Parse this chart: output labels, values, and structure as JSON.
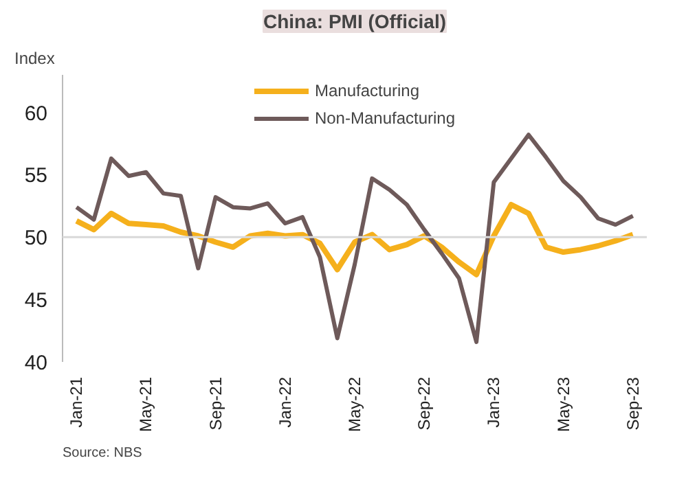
{
  "chart_data": {
    "type": "line",
    "title": "China: PMI (Official)",
    "ylabel": "Index",
    "categories": [
      "Jan-21",
      null,
      null,
      null,
      "May-21",
      null,
      null,
      null,
      "Sep-21",
      null,
      null,
      null,
      "Jan-22",
      null,
      null,
      null,
      "May-22",
      null,
      null,
      null,
      "Sep-22",
      null,
      null,
      null,
      "Jan-23",
      null,
      null,
      null,
      "May-23",
      null,
      null,
      null,
      "Sep-23"
    ],
    "series": [
      {
        "name": "Manufacturing",
        "color": "#f5b01c",
        "values": [
          51.3,
          50.6,
          51.9,
          51.1,
          51.0,
          50.9,
          50.4,
          50.1,
          49.6,
          49.2,
          50.1,
          50.3,
          50.1,
          50.2,
          49.5,
          47.4,
          49.6,
          50.2,
          49.0,
          49.4,
          50.1,
          49.2,
          48.0,
          47.0,
          50.1,
          52.6,
          51.9,
          49.2,
          48.8,
          49.0,
          49.3,
          49.7,
          50.2
        ]
      },
      {
        "name": "Non-Manufacturing",
        "color": "#6e5a5a",
        "values": [
          52.4,
          51.4,
          56.3,
          54.9,
          55.2,
          53.5,
          53.3,
          47.5,
          53.2,
          52.4,
          52.3,
          52.7,
          51.1,
          51.6,
          48.4,
          41.9,
          47.8,
          54.7,
          53.8,
          52.6,
          50.6,
          48.7,
          46.7,
          41.6,
          54.4,
          56.3,
          58.2,
          56.4,
          54.5,
          53.2,
          51.5,
          51.0,
          51.7
        ]
      }
    ],
    "ylim": [
      40,
      63
    ],
    "yticks": [
      40,
      45,
      50,
      55,
      60
    ],
    "ref_lines": [
      {
        "axis": "y",
        "value": 50,
        "color": "#d9d9d9"
      }
    ],
    "legend": "top",
    "grid": false,
    "annotations": [
      "Source: NBS"
    ]
  }
}
